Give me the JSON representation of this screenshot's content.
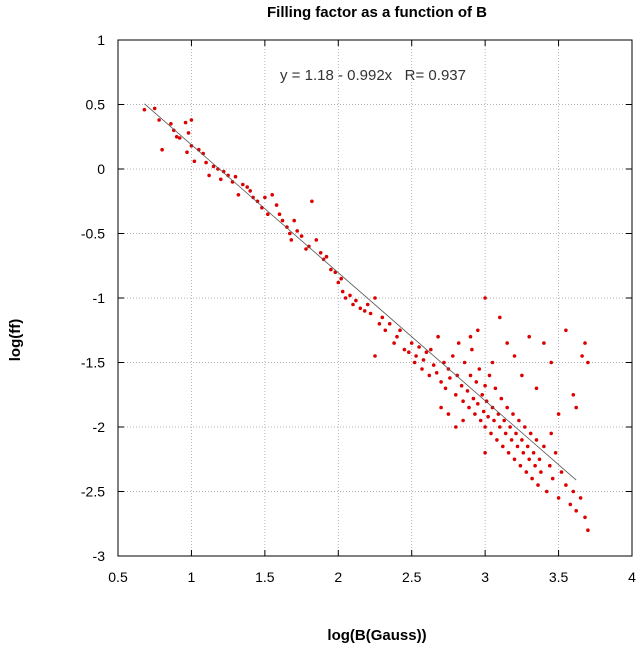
{
  "chart_data": {
    "type": "scatter",
    "title": "Filling factor as a function of B",
    "xlabel": "log(B(Gauss))",
    "ylabel": "log(ff)",
    "xlim": [
      0.5,
      4
    ],
    "ylim": [
      -3,
      1
    ],
    "xticks": [
      "0.5",
      "1",
      "1.5",
      "2",
      "2.5",
      "3",
      "3.5",
      "4"
    ],
    "yticks": [
      "1",
      "0.5",
      "0",
      "-0.5",
      "-1",
      "-1.5",
      "-2",
      "-2.5",
      "-3"
    ],
    "grid": true,
    "annotation": "y = 1.18 - 0.992x   R= 0.937",
    "fit": {
      "intercept": 1.18,
      "slope": -0.992,
      "r": 0.937,
      "x_range": [
        0.68,
        3.62
      ]
    },
    "point_color": "#dd0000",
    "series": [
      {
        "points": [
          [
            0.68,
            0.46
          ],
          [
            0.75,
            0.47
          ],
          [
            0.78,
            0.38
          ],
          [
            0.8,
            0.15
          ],
          [
            0.86,
            0.35
          ],
          [
            0.88,
            0.3
          ],
          [
            0.9,
            0.25
          ],
          [
            0.92,
            0.24
          ],
          [
            0.96,
            0.36
          ],
          [
            0.97,
            0.13
          ],
          [
            0.98,
            0.28
          ],
          [
            1.0,
            0.38
          ],
          [
            1.0,
            0.18
          ],
          [
            1.02,
            0.06
          ],
          [
            1.05,
            0.15
          ],
          [
            1.08,
            0.12
          ],
          [
            1.1,
            0.05
          ],
          [
            1.12,
            -0.05
          ],
          [
            1.15,
            0.02
          ],
          [
            1.18,
            0.0
          ],
          [
            1.2,
            -0.08
          ],
          [
            1.22,
            -0.02
          ],
          [
            1.25,
            -0.05
          ],
          [
            1.28,
            -0.1
          ],
          [
            1.3,
            -0.06
          ],
          [
            1.32,
            -0.2
          ],
          [
            1.35,
            -0.12
          ],
          [
            1.38,
            -0.14
          ],
          [
            1.4,
            -0.17
          ],
          [
            1.42,
            -0.22
          ],
          [
            1.45,
            -0.25
          ],
          [
            1.48,
            -0.3
          ],
          [
            1.5,
            -0.22
          ],
          [
            1.52,
            -0.35
          ],
          [
            1.55,
            -0.2
          ],
          [
            1.58,
            -0.28
          ],
          [
            1.6,
            -0.35
          ],
          [
            1.62,
            -0.4
          ],
          [
            1.65,
            -0.45
          ],
          [
            1.67,
            -0.5
          ],
          [
            1.68,
            -0.55
          ],
          [
            1.7,
            -0.4
          ],
          [
            1.72,
            -0.48
          ],
          [
            1.75,
            -0.52
          ],
          [
            1.78,
            -0.62
          ],
          [
            1.8,
            -0.6
          ],
          [
            1.82,
            -0.25
          ],
          [
            1.85,
            -0.55
          ],
          [
            1.88,
            -0.65
          ],
          [
            1.9,
            -0.7
          ],
          [
            1.92,
            -0.68
          ],
          [
            1.95,
            -0.78
          ],
          [
            1.98,
            -0.8
          ],
          [
            2.0,
            -0.88
          ],
          [
            2.02,
            -0.85
          ],
          [
            2.03,
            -0.95
          ],
          [
            2.05,
            -1.0
          ],
          [
            2.08,
            -0.98
          ],
          [
            2.1,
            -1.05
          ],
          [
            2.12,
            -1.02
          ],
          [
            2.15,
            -1.08
          ],
          [
            2.18,
            -1.1
          ],
          [
            2.2,
            -1.05
          ],
          [
            2.22,
            -1.12
          ],
          [
            2.25,
            -1.0
          ],
          [
            2.25,
            -1.45
          ],
          [
            2.28,
            -1.2
          ],
          [
            2.3,
            -1.15
          ],
          [
            2.32,
            -1.25
          ],
          [
            2.35,
            -1.2
          ],
          [
            2.38,
            -1.35
          ],
          [
            2.4,
            -1.3
          ],
          [
            2.42,
            -1.25
          ],
          [
            2.45,
            -1.4
          ],
          [
            2.48,
            -1.42
          ],
          [
            2.5,
            -1.35
          ],
          [
            2.52,
            -1.5
          ],
          [
            2.53,
            -1.45
          ],
          [
            2.55,
            -1.38
          ],
          [
            2.57,
            -1.55
          ],
          [
            2.58,
            -1.48
          ],
          [
            2.6,
            -1.42
          ],
          [
            2.62,
            -1.6
          ],
          [
            2.63,
            -1.4
          ],
          [
            2.65,
            -1.52
          ],
          [
            2.67,
            -1.58
          ],
          [
            2.68,
            -1.3
          ],
          [
            2.7,
            -1.65
          ],
          [
            2.72,
            -1.5
          ],
          [
            2.73,
            -1.7
          ],
          [
            2.75,
            -1.55
          ],
          [
            2.76,
            -1.62
          ],
          [
            2.78,
            -1.45
          ],
          [
            2.8,
            -1.75
          ],
          [
            2.81,
            -1.6
          ],
          [
            2.82,
            -1.35
          ],
          [
            2.84,
            -1.68
          ],
          [
            2.85,
            -1.8
          ],
          [
            2.86,
            -1.5
          ],
          [
            2.88,
            -1.72
          ],
          [
            2.89,
            -1.85
          ],
          [
            2.9,
            -1.6
          ],
          [
            2.91,
            -1.4
          ],
          [
            2.92,
            -1.78
          ],
          [
            2.93,
            -1.9
          ],
          [
            2.94,
            -1.65
          ],
          [
            2.95,
            -1.82
          ],
          [
            2.96,
            -1.55
          ],
          [
            2.97,
            -1.95
          ],
          [
            2.98,
            -1.75
          ],
          [
            2.99,
            -1.88
          ],
          [
            3.0,
            -1.68
          ],
          [
            3.0,
            -2.0
          ],
          [
            3.01,
            -1.8
          ],
          [
            3.02,
            -1.92
          ],
          [
            3.03,
            -1.6
          ],
          [
            3.04,
            -2.05
          ],
          [
            3.05,
            -1.85
          ],
          [
            3.06,
            -1.95
          ],
          [
            3.07,
            -1.7
          ],
          [
            3.08,
            -2.1
          ],
          [
            3.09,
            -1.9
          ],
          [
            3.1,
            -2.0
          ],
          [
            3.11,
            -1.78
          ],
          [
            3.12,
            -2.15
          ],
          [
            3.13,
            -1.95
          ],
          [
            3.14,
            -2.05
          ],
          [
            3.15,
            -1.85
          ],
          [
            3.16,
            -2.2
          ],
          [
            3.17,
            -2.0
          ],
          [
            3.18,
            -2.1
          ],
          [
            3.19,
            -1.9
          ],
          [
            3.2,
            -2.25
          ],
          [
            3.21,
            -2.05
          ],
          [
            3.22,
            -2.15
          ],
          [
            3.23,
            -1.95
          ],
          [
            3.24,
            -2.3
          ],
          [
            3.25,
            -2.1
          ],
          [
            3.26,
            -2.2
          ],
          [
            3.27,
            -2.0
          ],
          [
            3.28,
            -2.35
          ],
          [
            3.29,
            -2.15
          ],
          [
            3.3,
            -2.25
          ],
          [
            3.31,
            -2.05
          ],
          [
            3.32,
            -2.4
          ],
          [
            3.33,
            -2.2
          ],
          [
            3.34,
            -2.3
          ],
          [
            3.35,
            -2.1
          ],
          [
            3.36,
            -2.45
          ],
          [
            3.37,
            -2.25
          ],
          [
            3.38,
            -2.35
          ],
          [
            3.4,
            -2.15
          ],
          [
            3.42,
            -2.5
          ],
          [
            3.44,
            -2.3
          ],
          [
            3.46,
            -2.4
          ],
          [
            3.48,
            -2.2
          ],
          [
            3.5,
            -2.55
          ],
          [
            3.52,
            -2.35
          ],
          [
            3.55,
            -2.45
          ],
          [
            3.58,
            -2.6
          ],
          [
            3.6,
            -2.5
          ],
          [
            3.62,
            -2.65
          ],
          [
            3.65,
            -2.55
          ],
          [
            3.68,
            -2.7
          ],
          [
            3.7,
            -2.8
          ],
          [
            3.55,
            -1.25
          ],
          [
            3.6,
            -1.75
          ],
          [
            3.62,
            -1.85
          ],
          [
            3.66,
            -1.45
          ],
          [
            3.68,
            -1.35
          ],
          [
            3.7,
            -1.5
          ],
          [
            3.45,
            -1.5
          ],
          [
            3.4,
            -1.35
          ],
          [
            3.2,
            -1.45
          ],
          [
            3.0,
            -1.0
          ],
          [
            3.1,
            -1.15
          ],
          [
            3.15,
            -1.35
          ],
          [
            3.25,
            -1.6
          ],
          [
            3.3,
            -1.3
          ],
          [
            2.9,
            -1.3
          ],
          [
            2.95,
            -1.25
          ],
          [
            3.05,
            -1.5
          ],
          [
            3.35,
            -1.7
          ],
          [
            3.5,
            -1.9
          ],
          [
            3.45,
            -2.05
          ],
          [
            2.7,
            -1.85
          ],
          [
            2.8,
            -2.0
          ],
          [
            2.85,
            -1.95
          ],
          [
            2.75,
            -1.9
          ],
          [
            3.0,
            -2.2
          ]
        ]
      }
    ]
  }
}
